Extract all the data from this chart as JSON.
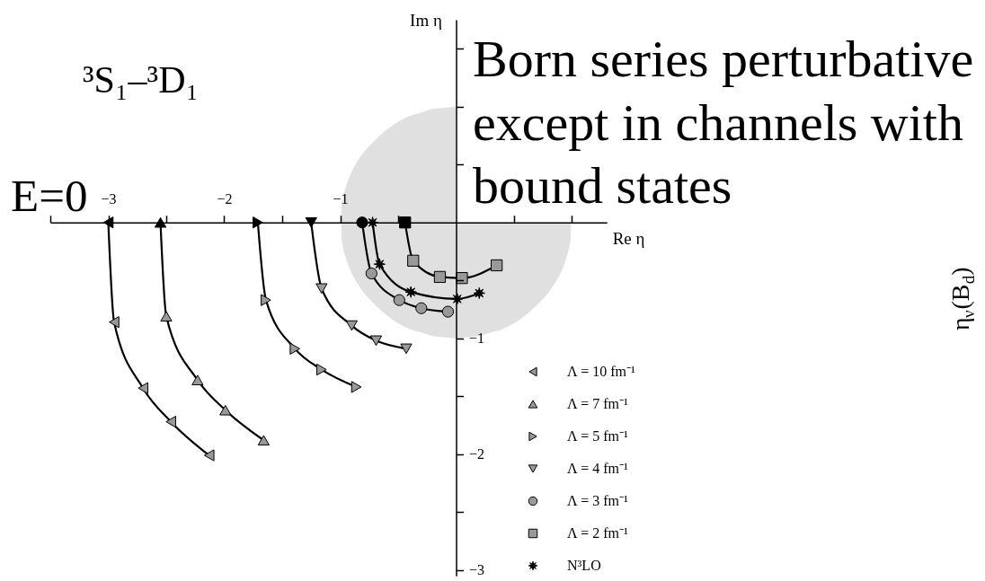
{
  "chart_data": {
    "type": "line",
    "title": "³S₁–³D₁",
    "xlabel": "Re η",
    "ylabel": "Im η",
    "xlim": [
      -3.5,
      1.3
    ],
    "ylim": [
      -3.05,
      1.75
    ],
    "xticks": [
      {
        "value": -3.5,
        "label": null
      },
      {
        "value": -3,
        "label": "−3"
      },
      {
        "value": -2.5,
        "label": null
      },
      {
        "value": -2,
        "label": "−2"
      },
      {
        "value": -1.5,
        "label": null
      },
      {
        "value": -1,
        "label": "−1"
      },
      {
        "value": -0.5,
        "label": null
      },
      {
        "value": 0.5,
        "label": null
      },
      {
        "value": 1,
        "label": null
      }
    ],
    "yticks": [
      {
        "value": 1.5,
        "label": null
      },
      {
        "value": 1,
        "label": null
      },
      {
        "value": 0.5,
        "label": null
      },
      {
        "value": -0.5,
        "label": null
      },
      {
        "value": -1,
        "label": "−1"
      },
      {
        "value": -1.5,
        "label": null
      },
      {
        "value": -2,
        "label": "−2"
      },
      {
        "value": -2.5,
        "label": null
      },
      {
        "value": -3,
        "label": "−3"
      }
    ],
    "legend": "bottom right",
    "line_style": "solid",
    "series": [
      {
        "type": "area",
        "color": "#e0e0e0",
        "x": [
          -0.99,
          -0.97,
          -0.94,
          -0.9,
          -0.85,
          -0.8,
          -0.7,
          -0.6,
          -0.5,
          -0.4,
          -0.3,
          -0.2,
          -0.1,
          0
        ],
        "values": [
          0.14,
          0.24,
          0.34,
          0.44,
          0.53,
          0.6,
          0.71,
          0.8,
          0.87,
          0.92,
          0.95,
          0.98,
          0.99,
          1
        ]
      },
      {
        "type": "area",
        "color": "#e0e0e0",
        "x": [
          -0.99,
          -0.97,
          -0.94,
          -0.9,
          -0.85,
          -0.8,
          -0.7,
          -0.6,
          -0.5,
          -0.4,
          -0.3,
          -0.2,
          -0.1,
          0,
          0.1,
          0.2,
          0.3,
          0.4,
          0.5,
          0.6,
          0.7,
          0.8,
          0.85,
          0.9,
          0.94,
          0.97,
          0.99
        ],
        "values": [
          -0.14,
          -0.24,
          -0.34,
          -0.44,
          -0.53,
          -0.6,
          -0.71,
          -0.8,
          -0.87,
          -0.92,
          -0.95,
          -0.98,
          -0.99,
          -1,
          -0.99,
          -0.98,
          -0.95,
          -0.92,
          -0.87,
          -0.8,
          -0.71,
          -0.6,
          -0.53,
          -0.44,
          -0.34,
          -0.24,
          -0.14
        ]
      },
      {
        "name": "Λ = 10 fm⁻¹",
        "color": "#000000",
        "marker": "triangle-left",
        "x": [
          -3.0,
          -2.95,
          -2.7,
          -2.46,
          -2.13
        ],
        "values": [
          0,
          -0.86,
          -1.43,
          -1.72,
          -2.01
        ],
        "colors": [
          "#000000",
          "#999999",
          "#999999",
          "#999999",
          "#999999"
        ]
      },
      {
        "name": "Λ = 7 fm⁻¹",
        "color": "#000000",
        "marker": "triangle-up",
        "x": [
          -2.55,
          -2.5,
          -2.23,
          -1.99,
          -1.66
        ],
        "values": [
          0,
          -0.81,
          -1.36,
          -1.62,
          -1.88
        ],
        "colors": [
          "#000000",
          "#999999",
          "#999999",
          "#999999",
          "#999999"
        ]
      },
      {
        "name": "Λ = 5 fm⁻¹",
        "color": "#000000",
        "marker": "triangle-right",
        "x": [
          -1.71,
          -1.64,
          -1.39,
          -1.16,
          -0.86
        ],
        "values": [
          0,
          -0.67,
          -1.09,
          -1.27,
          -1.42
        ],
        "colors": [
          "#000000",
          "#999999",
          "#999999",
          "#999999",
          "#999999"
        ]
      },
      {
        "name": "Λ = 4 fm⁻¹",
        "color": "#000000",
        "marker": "triangle-down",
        "x": [
          -1.25,
          -1.16,
          -0.9,
          -0.69,
          -0.43
        ],
        "values": [
          0,
          -0.57,
          -0.89,
          -1.02,
          -1.09
        ],
        "colors": [
          "#000000",
          "#999999",
          "#999999",
          "#999999",
          "#999999"
        ]
      },
      {
        "name": "Λ = 3 fm⁻¹",
        "color": "#000000",
        "marker": "circle",
        "x": [
          -0.81,
          -0.73,
          -0.49,
          -0.3,
          -0.07
        ],
        "values": [
          0,
          -0.44,
          -0.67,
          -0.74,
          -0.77
        ],
        "colors": [
          "#000000",
          "#999999",
          "#999999",
          "#999999",
          "#999999"
        ]
      },
      {
        "name": "Λ = 2 fm⁻¹",
        "color": "#000000",
        "marker": "square",
        "x": [
          -0.44,
          -0.37,
          -0.14,
          0.05,
          0.35
        ],
        "values": [
          0,
          -0.33,
          -0.47,
          -0.48,
          -0.37
        ],
        "colors": [
          "#000000",
          "#999999",
          "#999999",
          "#999999",
          "#999999"
        ]
      },
      {
        "name": "N³LO",
        "color": "#000000",
        "marker": "star",
        "x": [
          -0.72,
          -0.66,
          -0.39,
          0.01,
          0.2
        ],
        "values": [
          0,
          -0.36,
          -0.6,
          -0.66,
          -0.61
        ],
        "colors": [
          "#000000",
          "#000000",
          "#000000",
          "#000000",
          "#000000"
        ]
      }
    ],
    "annotations": [
      "E=0",
      "Born series perturbative\nexcept in channels with\nbound states",
      "η$_{ν}$(B$_{d}$)"
    ]
  }
}
